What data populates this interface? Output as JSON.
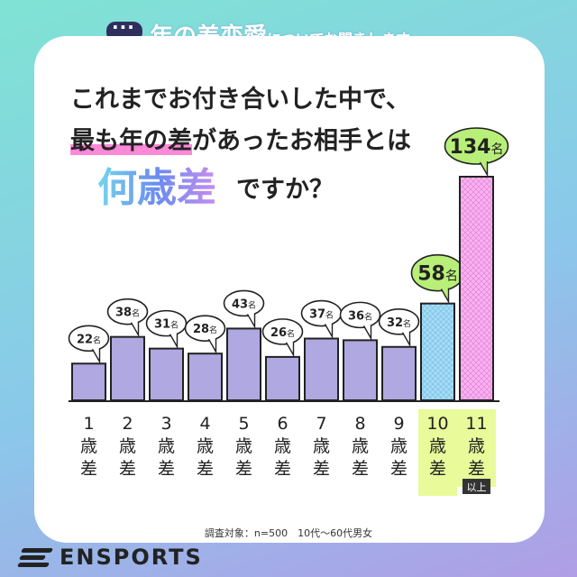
{
  "header": {
    "title_big": "年の差恋愛",
    "title_small": "についてお聞きします"
  },
  "question": {
    "line1": "これまでお付き合いした中で、",
    "line2_highlight": "最も年の差",
    "line2_rest": "があったお相手とは",
    "big": "何歳差",
    "suffix": "ですか？"
  },
  "footnote": "調査対象：n=500　10代〜60代男女",
  "logo": "ENSPORTS",
  "colors": {
    "bar_default": "#b0a8e0",
    "bar_highlight_10": "#a8dcf5",
    "bar_highlight_11": "#f7b5f0",
    "bubble_highlight": "#b8ef78",
    "label_highlight_bg": "#e8fa9a"
  },
  "chart_data": {
    "type": "bar",
    "unit": "名",
    "categories": [
      {
        "num": "1",
        "unit": "歳差"
      },
      {
        "num": "2",
        "unit": "歳差"
      },
      {
        "num": "3",
        "unit": "歳差"
      },
      {
        "num": "4",
        "unit": "歳差"
      },
      {
        "num": "5",
        "unit": "歳差"
      },
      {
        "num": "6",
        "unit": "歳差"
      },
      {
        "num": "7",
        "unit": "歳差"
      },
      {
        "num": "8",
        "unit": "歳差"
      },
      {
        "num": "9",
        "unit": "歳差"
      },
      {
        "num": "10",
        "unit": "歳差"
      },
      {
        "num": "11",
        "unit": "歳差",
        "note": "以上"
      }
    ],
    "values": [
      22,
      38,
      31,
      28,
      43,
      26,
      37,
      36,
      32,
      58,
      134
    ],
    "highlight": [
      9,
      10
    ],
    "ylim": [
      0,
      134
    ]
  }
}
